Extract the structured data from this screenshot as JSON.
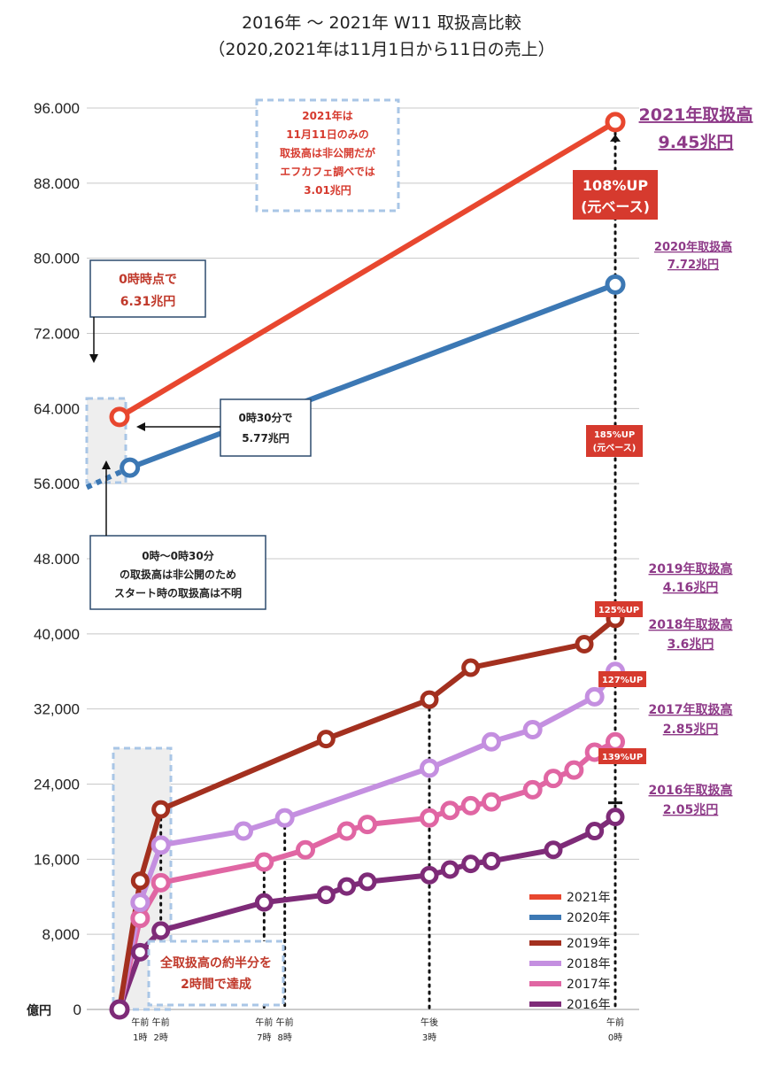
{
  "title_line1": "2016年 〜 2021年 W11 取扱高比較",
  "title_line2": "（2020,2021年は11月1日から11日の売上）",
  "colors": {
    "2021": "#e8472f",
    "2020": "#3c78b4",
    "2019": "#a3301f",
    "2018": "#c48fe0",
    "2017": "#e066a3",
    "2016": "#7e2b78",
    "label_purple": "#8e3a88",
    "badge_red": "#d63a2e",
    "dashed_box": "#a9c6e6"
  },
  "notes": {
    "n2021_box": [
      "2021年は",
      "11月11日のみの",
      "取扱高は非公開だが",
      "エフカフェ調べでは",
      "3.01兆円"
    ],
    "zero_hour": [
      "0時時点で",
      "6.31兆円"
    ],
    "half_hour": [
      "0時30分で",
      "5.77兆円"
    ],
    "unknown": [
      "0時〜0時30分",
      "の取扱高は非公開のため",
      "スタート時の取扱高は不明"
    ],
    "half_in_two": [
      "全取扱高の約半分を",
      "2時間で達成"
    ]
  },
  "end_labels": {
    "l2021": [
      "2021年取扱高",
      "9.45兆円"
    ],
    "l2020": [
      "2020年取扱高",
      "7.72兆円"
    ],
    "l2019": [
      "2019年取扱高",
      "4.16兆円"
    ],
    "l2018": [
      "2018年取扱高",
      "3.6兆円"
    ],
    "l2017": [
      "2017年取扱高",
      "2.85兆円"
    ],
    "l2016": [
      "2016年取扱高",
      "2.05兆円"
    ]
  },
  "badges": {
    "b108": [
      "108%UP",
      "(元ベース)"
    ],
    "b185": [
      "185%UP",
      "(元ベース)"
    ],
    "b125": "125%UP",
    "b127": "127%UP",
    "b139": "139%UP"
  },
  "chart_data": {
    "type": "line",
    "title": "2016年 〜 2021年 W11 取扱高比較",
    "subtitle": "（2020,2021年は11月1日から11日の売上）",
    "ylabel": "億円",
    "ylim": [
      0,
      96000
    ],
    "y_ticks": [
      0,
      8000,
      16000,
      24000,
      32000,
      40000,
      48000,
      56000,
      64000,
      72000,
      80000,
      88000,
      96000
    ],
    "y_tick_labels": [
      "0",
      "8,000",
      "16,000",
      "24,000",
      "32,000",
      "40,000",
      "48.000",
      "56.000",
      "64.000",
      "72.000",
      "80.000",
      "88.000",
      "96.000"
    ],
    "xlim": [
      0,
      24
    ],
    "x_tick_labels": [
      {
        "x": 1,
        "lines": [
          "午前",
          "1時"
        ]
      },
      {
        "x": 2,
        "lines": [
          "午前",
          "2時"
        ]
      },
      {
        "x": 7,
        "lines": [
          "午前",
          "7時"
        ]
      },
      {
        "x": 8,
        "lines": [
          "午前",
          "8時"
        ]
      },
      {
        "x": 15,
        "lines": [
          "午後",
          "3時"
        ]
      },
      {
        "x": 24,
        "lines": [
          "午前",
          "0時"
        ]
      }
    ],
    "series": [
      {
        "name": "2021年",
        "points": [
          [
            0,
            63100
          ],
          [
            24,
            94500
          ]
        ]
      },
      {
        "name": "2020年",
        "points": [
          [
            0.5,
            57700
          ],
          [
            24,
            77200
          ]
        ]
      },
      {
        "name": "2019年",
        "points": [
          [
            0,
            0
          ],
          [
            1,
            13700
          ],
          [
            2,
            21300
          ],
          [
            10,
            28800
          ],
          [
            15,
            33000
          ],
          [
            17,
            36400
          ],
          [
            22.5,
            38900
          ],
          [
            24,
            41600
          ]
        ]
      },
      {
        "name": "2018年",
        "points": [
          [
            0,
            0
          ],
          [
            1,
            11400
          ],
          [
            2,
            17500
          ],
          [
            6,
            19000
          ],
          [
            8,
            20400
          ],
          [
            15,
            25700
          ],
          [
            18,
            28500
          ],
          [
            20,
            29800
          ],
          [
            23,
            33300
          ],
          [
            24,
            36000
          ]
        ]
      },
      {
        "name": "2017年",
        "points": [
          [
            0,
            0
          ],
          [
            1,
            9700
          ],
          [
            2,
            13500
          ],
          [
            7,
            15700
          ],
          [
            9,
            17000
          ],
          [
            11,
            19000
          ],
          [
            12,
            19700
          ],
          [
            15,
            20400
          ],
          [
            16,
            21200
          ],
          [
            17,
            21700
          ],
          [
            18,
            22100
          ],
          [
            20,
            23400
          ],
          [
            21,
            24600
          ],
          [
            22,
            25500
          ],
          [
            23,
            27400
          ],
          [
            24,
            28500
          ]
        ]
      },
      {
        "name": "2016年",
        "points": [
          [
            0,
            0
          ],
          [
            1,
            6100
          ],
          [
            2,
            8400
          ],
          [
            7,
            11400
          ],
          [
            10,
            12200
          ],
          [
            11,
            13100
          ],
          [
            12,
            13600
          ],
          [
            15,
            14300
          ],
          [
            16,
            14900
          ],
          [
            17,
            15500
          ],
          [
            18,
            15800
          ],
          [
            21,
            17000
          ],
          [
            23,
            19000
          ],
          [
            24,
            20500
          ]
        ]
      }
    ],
    "legend": {
      "placement": "bottom-right",
      "entries": [
        "2021年",
        "2020年",
        "2019年",
        "2018年",
        "2017年",
        "2016年"
      ]
    },
    "grid": true
  }
}
